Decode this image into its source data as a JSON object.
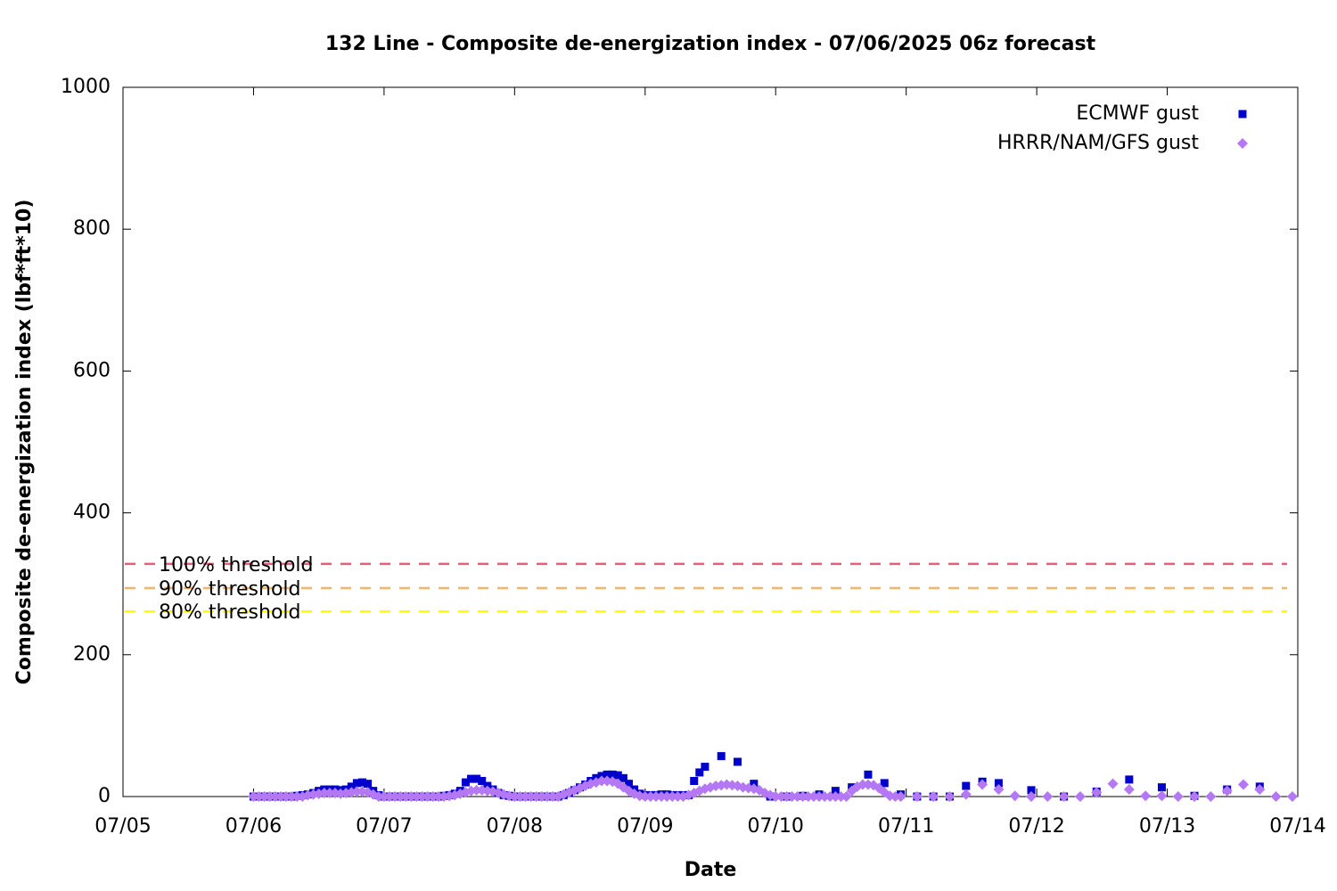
{
  "chart_data": {
    "type": "scatter",
    "title": "132 Line - Composite de-energization index - 07/06/2025 06z forecast",
    "x_label": "Date",
    "y_label": "Composite de-energization index (lbf*ft*10)",
    "xlim": [
      0,
      216
    ],
    "xticks": [
      {
        "value": 0,
        "label": "07/05"
      },
      {
        "value": 24,
        "label": "07/06"
      },
      {
        "value": 48,
        "label": "07/07"
      },
      {
        "value": 72,
        "label": "07/08"
      },
      {
        "value": 96,
        "label": "07/09"
      },
      {
        "value": 120,
        "label": "07/10"
      },
      {
        "value": 144,
        "label": "07/11"
      },
      {
        "value": 168,
        "label": "07/12"
      },
      {
        "value": 192,
        "label": "07/13"
      },
      {
        "value": 216,
        "label": "07/14"
      }
    ],
    "ylim": [
      0,
      1000
    ],
    "yticks": [
      0,
      200,
      400,
      600,
      800,
      1000
    ],
    "legend": "top-right",
    "thresholds": [
      {
        "label": "100% threshold",
        "value": 328,
        "color": "#e0607e"
      },
      {
        "label": "90% threshold",
        "value": 294,
        "color": "#f4b46e"
      },
      {
        "label": "80% threshold",
        "value": 261,
        "color": "#ffff00"
      }
    ],
    "series": [
      {
        "name": "ECMWF gust",
        "color": "#0000cc",
        "marker": "square",
        "x": [
          24,
          25,
          26,
          27,
          28,
          29,
          30,
          31,
          32,
          33,
          34,
          35,
          36,
          37,
          38,
          39,
          40,
          41,
          42,
          43,
          44,
          45,
          46,
          47,
          48,
          49,
          50,
          51,
          52,
          53,
          54,
          55,
          56,
          57,
          58,
          59,
          60,
          61,
          62,
          63,
          64,
          65,
          66,
          67,
          68,
          69,
          70,
          71,
          72,
          73,
          74,
          75,
          76,
          77,
          78,
          79,
          80,
          81,
          82,
          83,
          84,
          85,
          86,
          87,
          88,
          89,
          90,
          91,
          92,
          93,
          94,
          95,
          96,
          97,
          98,
          99,
          100,
          101,
          102,
          103,
          104,
          105,
          106,
          107,
          110,
          113,
          116,
          119,
          122,
          125,
          128,
          131,
          134,
          137,
          140,
          143,
          146,
          149,
          152,
          155,
          158,
          161,
          167,
          173,
          179,
          185,
          191,
          197,
          203,
          209
        ],
        "values": [
          0,
          0,
          0,
          0,
          0,
          0,
          0,
          0,
          1,
          2,
          3,
          5,
          8,
          10,
          10,
          10,
          9,
          10,
          14,
          19,
          20,
          18,
          8,
          2,
          0,
          0,
          0,
          0,
          0,
          0,
          0,
          0,
          0,
          0,
          0,
          1,
          2,
          4,
          8,
          20,
          25,
          25,
          22,
          15,
          10,
          5,
          2,
          1,
          0,
          0,
          0,
          0,
          0,
          0,
          0,
          0,
          0,
          2,
          5,
          9,
          13,
          17,
          22,
          26,
          29,
          31,
          31,
          30,
          26,
          18,
          10,
          4,
          2,
          2,
          2,
          3,
          3,
          2,
          2,
          2,
          2,
          22,
          34,
          42,
          57,
          49,
          18,
          0,
          0,
          1,
          3,
          8,
          13,
          31,
          19,
          3,
          0,
          0,
          0,
          15,
          21,
          19,
          9,
          0,
          7,
          24,
          13,
          1,
          10,
          14
        ]
      },
      {
        "name": "HRRR/NAM/GFS gust",
        "color": "#b478f5",
        "marker": "diamond",
        "x": [
          24,
          25,
          26,
          27,
          28,
          29,
          30,
          31,
          32,
          33,
          34,
          35,
          36,
          37,
          38,
          39,
          40,
          41,
          42,
          43,
          44,
          45,
          46,
          47,
          48,
          49,
          50,
          51,
          52,
          53,
          54,
          55,
          56,
          57,
          58,
          59,
          60,
          61,
          62,
          63,
          64,
          65,
          66,
          67,
          68,
          69,
          70,
          71,
          72,
          73,
          74,
          75,
          76,
          77,
          78,
          79,
          80,
          81,
          82,
          83,
          84,
          85,
          86,
          87,
          88,
          89,
          90,
          91,
          92,
          93,
          94,
          95,
          96,
          97,
          98,
          99,
          100,
          101,
          102,
          103,
          104,
          105,
          106,
          107,
          108,
          109,
          110,
          111,
          112,
          113,
          114,
          115,
          116,
          117,
          118,
          119,
          120,
          121,
          122,
          123,
          124,
          125,
          126,
          127,
          128,
          129,
          130,
          131,
          132,
          133,
          134,
          135,
          136,
          137,
          138,
          139,
          140,
          141,
          142,
          143,
          146,
          149,
          152,
          155,
          158,
          161,
          164,
          167,
          170,
          173,
          176,
          179,
          182,
          185,
          188,
          191,
          194,
          197,
          200,
          203,
          206,
          209,
          212,
          215
        ],
        "values": [
          0,
          0,
          0,
          0,
          0,
          0,
          0,
          0,
          0,
          0,
          2,
          3,
          4,
          5,
          5,
          5,
          4,
          5,
          6,
          7,
          7,
          6,
          3,
          0,
          0,
          0,
          0,
          0,
          0,
          0,
          0,
          0,
          0,
          0,
          0,
          0,
          1,
          2,
          4,
          6,
          8,
          9,
          9,
          8,
          7,
          5,
          3,
          1,
          0,
          0,
          0,
          0,
          0,
          0,
          0,
          0,
          0,
          3,
          6,
          9,
          12,
          15,
          18,
          20,
          22,
          22,
          21,
          18,
          13,
          8,
          4,
          1,
          0,
          0,
          0,
          0,
          0,
          0,
          0,
          0,
          2,
          5,
          8,
          11,
          13,
          15,
          16,
          17,
          16,
          15,
          13,
          12,
          11,
          9,
          5,
          2,
          0,
          0,
          0,
          0,
          0,
          0,
          0,
          0,
          0,
          0,
          0,
          0,
          0,
          0,
          8,
          14,
          17,
          17,
          16,
          12,
          6,
          1,
          0,
          0,
          0,
          0,
          0,
          3,
          17,
          10,
          1,
          0,
          0,
          0,
          0,
          6,
          18,
          10,
          1,
          1,
          0,
          0,
          0,
          8,
          17,
          10,
          0,
          0
        ]
      }
    ]
  }
}
